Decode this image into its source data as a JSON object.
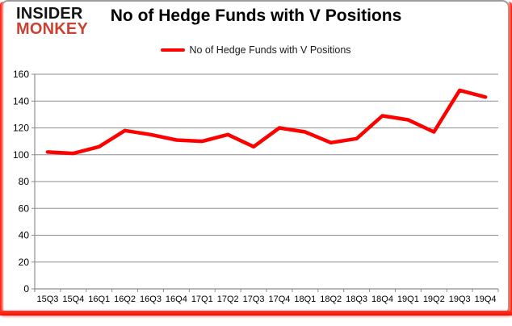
{
  "page": {
    "logo": {
      "line1": "INSIDER",
      "line2": "MONKEY"
    },
    "title": "No of Hedge Funds with V Positions",
    "legend": {
      "label": "No of Hedge Funds with V Positions"
    }
  },
  "colors": {
    "line": "#ff0000",
    "logo_black": "#141414",
    "logo_red": "#c94334",
    "gridline": "#8e8e8e",
    "axis": "#8e8e8e",
    "axis_text": "#000000",
    "frame_red": "#ff0f00",
    "frame_gray": "#9c9c9c"
  },
  "chart_data": {
    "type": "line",
    "title": "No of Hedge Funds with V Positions",
    "categories": [
      "15Q3",
      "15Q4",
      "16Q1",
      "16Q2",
      "16Q3",
      "16Q4",
      "17Q1",
      "17Q2",
      "17Q3",
      "17Q4",
      "18Q1",
      "18Q2",
      "18Q3",
      "18Q4",
      "19Q1",
      "19Q2",
      "19Q3",
      "19Q4"
    ],
    "series": [
      {
        "name": "No of Hedge Funds with V Positions",
        "color": "#ff0000",
        "values": [
          102,
          101,
          106,
          118,
          115,
          111,
          110,
          115,
          106,
          120,
          117,
          109,
          112,
          129,
          126,
          117,
          148,
          143
        ]
      }
    ],
    "ylim": [
      0,
      160
    ],
    "ytick_step": 20,
    "grid": true,
    "legend_position": "top"
  }
}
